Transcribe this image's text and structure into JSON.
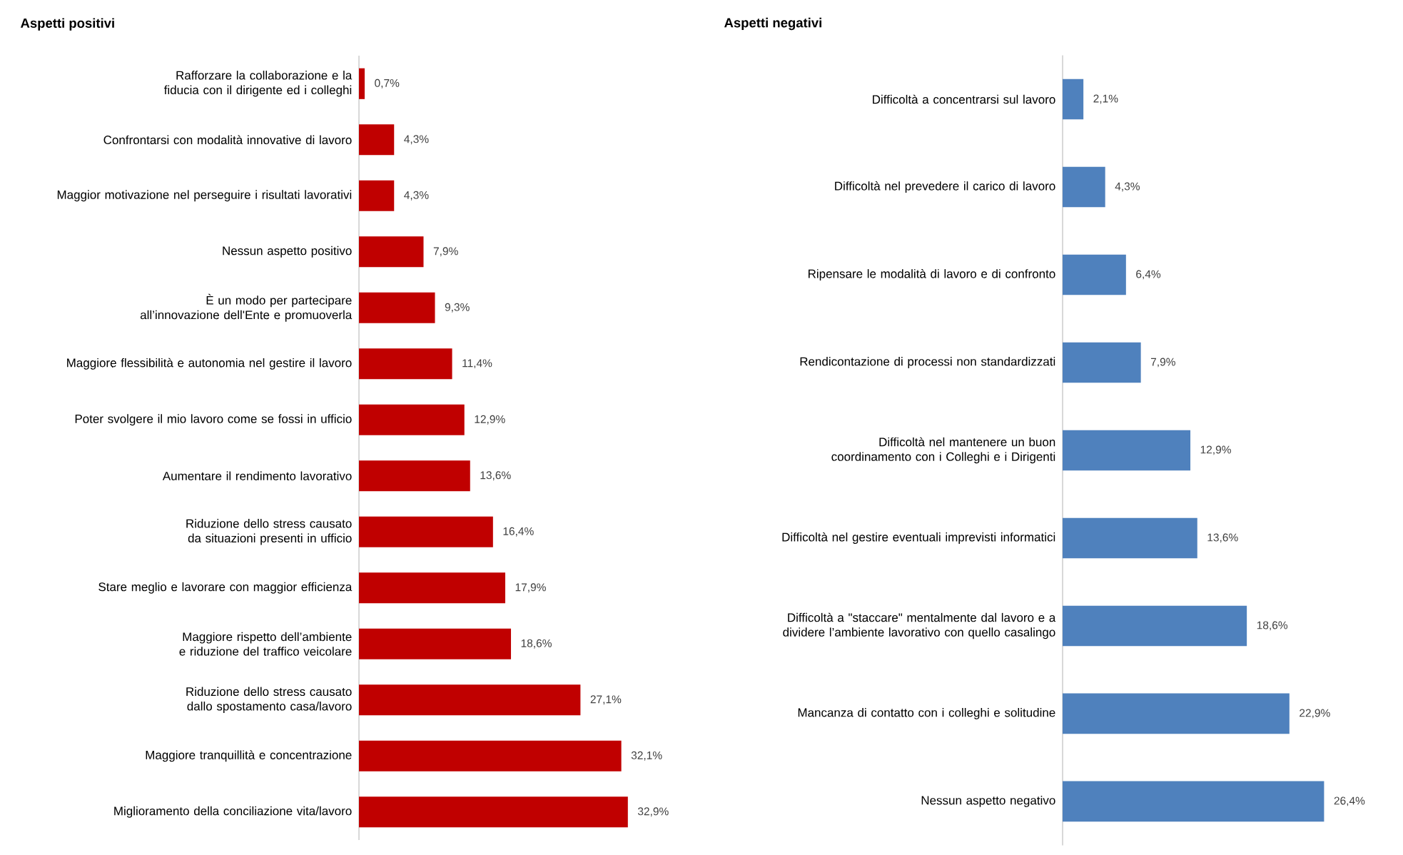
{
  "chart_data": [
    {
      "type": "bar",
      "orientation": "horizontal",
      "title": "Aspetti positivi",
      "color": "#c00000",
      "categories": [
        "Rafforzare la collaborazione e la fiducia con il dirigente ed i colleghi",
        "Confrontarsi con modalità innovative di lavoro",
        "Maggior motivazione nel perseguire i risultati lavorativi",
        "Nessun aspetto positivo",
        "È un modo per partecipare all’innovazione dell'Ente e promuoverla",
        "Maggiore flessibilità e autonomia nel gestire il lavoro",
        "Poter svolgere il mio lavoro come se fossi in ufficio",
        "Aumentare il rendimento lavorativo",
        "Riduzione dello stress causato da situazioni presenti in ufficio",
        "Stare meglio e lavorare con maggior efficienza",
        "Maggiore rispetto dell’ambiente e  riduzione del traffico veicolare",
        "Riduzione dello stress causato dallo spostamento casa/lavoro",
        "Maggiore tranquillità e concentrazione",
        "Miglioramento della conciliazione vita/lavoro"
      ],
      "values": [
        0.7,
        4.3,
        4.3,
        7.9,
        9.3,
        11.4,
        12.9,
        13.6,
        16.4,
        17.9,
        18.6,
        27.1,
        32.1,
        32.9
      ],
      "value_labels": [
        "0,7%",
        "4,3%",
        "4,3%",
        "7,9%",
        "9,3%",
        "11,4%",
        "12,9%",
        "13,6%",
        "16,4%",
        "17,9%",
        "18,6%",
        "27,1%",
        "32,1%",
        "32,9%"
      ]
    },
    {
      "type": "bar",
      "orientation": "horizontal",
      "title": "Aspetti negativi",
      "color": "#4f81bd",
      "categories": [
        "Difficoltà a concentrarsi sul lavoro",
        "Difficoltà nel prevedere il carico di lavoro",
        "Ripensare le modalità di lavoro e di confronto",
        "Rendicontazione di processi non standardizzati",
        "Difficoltà nel mantenere un buon coordinamento con i Colleghi e i Dirigenti",
        "Difficoltà nel gestire eventuali imprevisti informatici",
        "Difficoltà a \"staccare\" mentalmente dal lavoro e a dividere l’ambiente lavorativo con quello casalingo",
        "Mancanza di contatto con i colleghi e solitudine",
        "Nessun aspetto negativo"
      ],
      "values": [
        2.1,
        4.3,
        6.4,
        7.9,
        12.9,
        13.6,
        18.6,
        22.9,
        26.4
      ],
      "value_labels": [
        "2,1%",
        "4,3%",
        "6,4%",
        "7,9%",
        "12,9%",
        "13,6%",
        "18,6%",
        "22,9%",
        "26,4%"
      ]
    }
  ]
}
